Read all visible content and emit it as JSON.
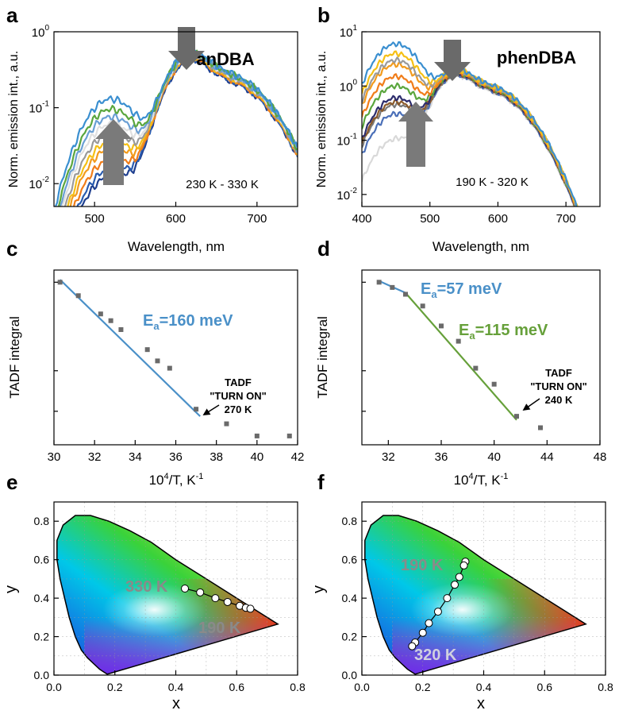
{
  "chart_data": [
    {
      "panel": "a",
      "type": "line",
      "title": "anDBA",
      "xlabel": "Wavelength, nm",
      "ylabel": "Norm. emission int., a.u.",
      "yscale": "log",
      "xlim": [
        450,
        750
      ],
      "ylim": [
        0.005,
        1.0
      ],
      "xticks": [
        "500",
        "600",
        "700"
      ],
      "yticks_base": [
        "10",
        "10",
        "10"
      ],
      "yticks_exp": [
        "-2",
        "-1",
        "0"
      ],
      "annotation": "230 K - 330 K",
      "series_colors": [
        "#1f3f8f",
        "#2a5cb0",
        "#f07d1a",
        "#f29b1d",
        "#f5c016",
        "#9a9a9a",
        "#e0e0e0",
        "#6a9fd4",
        "#5aa63d",
        "#3a8fd0"
      ],
      "short_peak_heights": [
        0.012,
        0.015,
        0.02,
        0.028,
        0.035,
        0.045,
        0.06,
        0.075,
        0.095,
        0.13
      ],
      "main_peak": 0.4,
      "peak_nm": 615,
      "short_peak_nm": 520
    },
    {
      "panel": "b",
      "type": "line",
      "title": "phenDBA",
      "xlabel": "Wavelength, nm",
      "ylabel": "Norm. emission int., a.u.",
      "yscale": "log",
      "xlim": [
        400,
        750
      ],
      "ylim": [
        0.006,
        10
      ],
      "xticks": [
        "400",
        "500",
        "600",
        "700"
      ],
      "yticks_base": [
        "10",
        "10",
        "10",
        "10"
      ],
      "yticks_exp": [
        "-2",
        "-1",
        "0",
        "1"
      ],
      "annotation": "190 K - 320 K",
      "series_colors": [
        "#d9d9d9",
        "#4a6fb8",
        "#7a7a7a",
        "#8b5a2b",
        "#2d2d6d",
        "#5aa63d",
        "#f07d1a",
        "#f29b1d",
        "#9a9a9a",
        "#f5c016",
        "#3a8fd0"
      ],
      "short_peak_heights": [
        0.1,
        0.3,
        0.45,
        0.5,
        0.6,
        1.0,
        1.5,
        2.5,
        3.0,
        4.0,
        6.0
      ],
      "main_peak": 1.5,
      "peak_nm": 535,
      "short_peak_nm": 450
    },
    {
      "panel": "c",
      "type": "scatter",
      "xlabel_base": "10",
      "xlabel_exp": "4",
      "xlabel_rest": "/T, K",
      "xlabel_rest_exp": "-1",
      "ylabel": "TADF integral",
      "xlim": [
        30,
        42
      ],
      "xticks": [
        "30",
        "32",
        "34",
        "36",
        "38",
        "40",
        "42"
      ],
      "tick_values": [
        30,
        32,
        34,
        36,
        38,
        40,
        42
      ],
      "points": [
        [
          30.3,
          10
        ],
        [
          31.2,
          9.0
        ],
        [
          32.3,
          7.8
        ],
        [
          32.8,
          7.4
        ],
        [
          33.3,
          6.9
        ],
        [
          34.6,
          5.9
        ],
        [
          35.1,
          5.4
        ],
        [
          35.7,
          5.1
        ],
        [
          37.0,
          3.7
        ],
        [
          38.5,
          3.3
        ],
        [
          40.0,
          3.0
        ],
        [
          41.6,
          3.0
        ]
      ],
      "fit": [
        [
          30.3,
          10.2
        ],
        [
          37.2,
          3.5
        ]
      ],
      "fit_color": "#4a90c8",
      "fit_label": "E",
      "fit_label_sub": "a",
      "fit_label_rest": "=160 meV",
      "turn_on_line1": "TADF",
      "turn_on_line2": "\"TURN ON\"",
      "turn_on_line3": "270 K",
      "turn_on_x": 37.0,
      "y_range": [
        2.8,
        11
      ]
    },
    {
      "panel": "d",
      "type": "scatter",
      "xlabel_base": "10",
      "xlabel_exp": "4",
      "xlabel_rest": "/T, K",
      "xlabel_rest_exp": "-1",
      "ylabel": "TADF integral",
      "xlim": [
        30,
        48
      ],
      "xticks": [
        "32",
        "36",
        "40",
        "44",
        "48"
      ],
      "tick_values": [
        32,
        36,
        40,
        44,
        48
      ],
      "points": [
        [
          31.3,
          10
        ],
        [
          32.3,
          9.6
        ],
        [
          33.3,
          9.1
        ],
        [
          34.6,
          8.3
        ],
        [
          36.0,
          7.1
        ],
        [
          37.3,
          6.3
        ],
        [
          38.6,
          5.1
        ],
        [
          40.0,
          4.5
        ],
        [
          41.7,
          3.5
        ],
        [
          43.5,
          3.2
        ]
      ],
      "fit_segments": [
        {
          "points": [
            [
              31.3,
              10.1
            ],
            [
              33.3,
              9.2
            ]
          ],
          "color": "#4a90c8"
        },
        {
          "points": [
            [
              33.3,
              9.2
            ],
            [
              41.7,
              3.4
            ]
          ],
          "color": "#66a03a"
        }
      ],
      "fit_label1": "E",
      "fit_label1_sub": "a",
      "fit_label1_rest": "=57 meV",
      "fit_label1_color": "#4a90c8",
      "fit_label2": "E",
      "fit_label2_sub": "a",
      "fit_label2_rest": "=115 meV",
      "fit_label2_color": "#66a03a",
      "turn_on_line1": "TADF",
      "turn_on_line2": "\"TURN ON\"",
      "turn_on_line3": "240 K",
      "turn_on_x": 41.7,
      "y_range": [
        2.8,
        11
      ]
    },
    {
      "panel": "e",
      "type": "scatter",
      "subtype": "CIE 1931 chromaticity",
      "xlabel": "x",
      "ylabel": "y",
      "xlim": [
        0.0,
        0.8
      ],
      "ylim": [
        0.0,
        0.9
      ],
      "xticks": [
        "0.0",
        "0.2",
        "0.4",
        "0.6",
        "0.8"
      ],
      "yticks": [
        "0.0",
        "0.2",
        "0.4",
        "0.6",
        "0.8"
      ],
      "points": [
        [
          0.43,
          0.45
        ],
        [
          0.48,
          0.43
        ],
        [
          0.53,
          0.4
        ],
        [
          0.57,
          0.38
        ],
        [
          0.61,
          0.36
        ],
        [
          0.63,
          0.35
        ],
        [
          0.645,
          0.345
        ]
      ],
      "label_high": "330 K",
      "label_low": "190 K"
    },
    {
      "panel": "f",
      "type": "scatter",
      "subtype": "CIE 1931 chromaticity",
      "xlabel": "x",
      "ylabel": "y",
      "xlim": [
        0.0,
        0.8
      ],
      "ylim": [
        0.0,
        0.9
      ],
      "xticks": [
        "0.0",
        "0.2",
        "0.4",
        "0.6",
        "0.8"
      ],
      "yticks": [
        "0.0",
        "0.2",
        "0.4",
        "0.6",
        "0.8"
      ],
      "points": [
        [
          0.34,
          0.59
        ],
        [
          0.335,
          0.57
        ],
        [
          0.32,
          0.51
        ],
        [
          0.305,
          0.47
        ],
        [
          0.28,
          0.4
        ],
        [
          0.25,
          0.33
        ],
        [
          0.22,
          0.27
        ],
        [
          0.2,
          0.22
        ],
        [
          0.175,
          0.17
        ],
        [
          0.165,
          0.15
        ]
      ],
      "label_high": "190 K",
      "label_low": "320 K"
    }
  ],
  "panel_letters": [
    "a",
    "b",
    "c",
    "d",
    "e",
    "f"
  ]
}
